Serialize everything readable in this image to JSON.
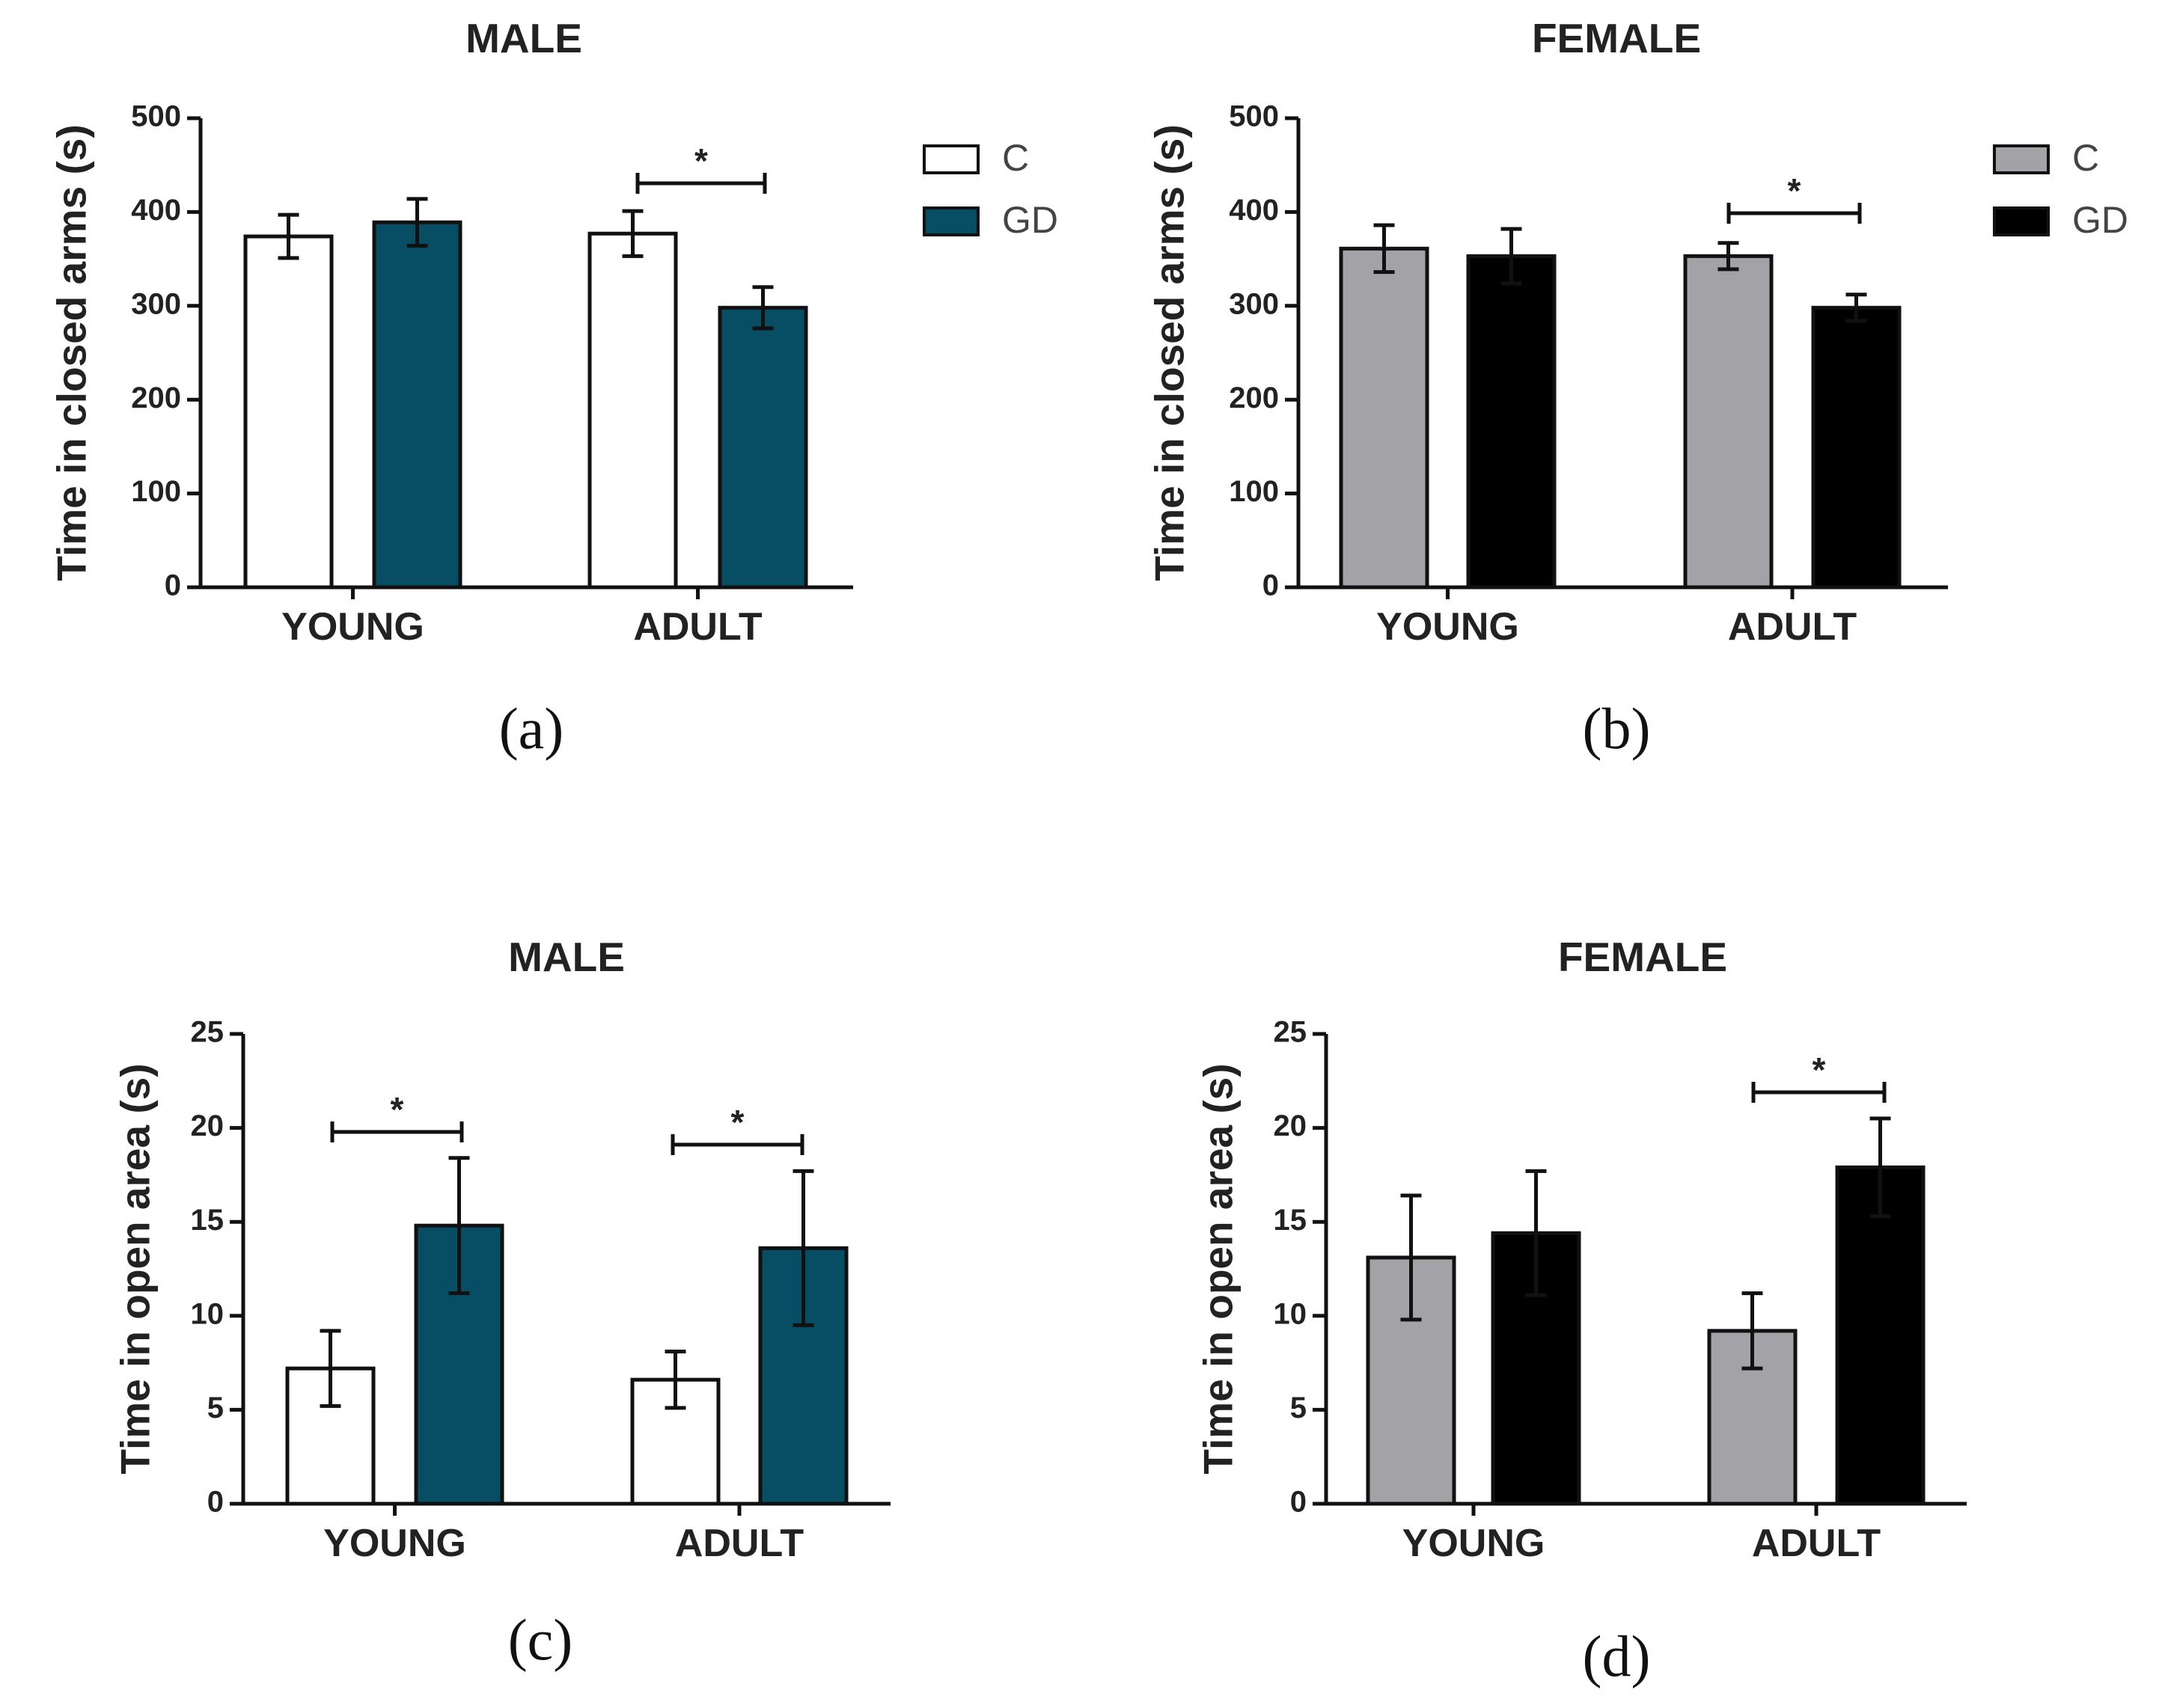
{
  "chart_data": [
    {
      "type": "bar",
      "caption": "(a)",
      "title": "MALE",
      "ylabel": "Time in closed arms (s)",
      "categories": [
        "YOUNG",
        "ADULT"
      ],
      "ylim": [
        0,
        500
      ],
      "yticks": [
        "0",
        "100",
        "200",
        "300",
        "400",
        "500"
      ],
      "series": [
        {
          "name": "C",
          "color": "#ffffff",
          "values": [
            374,
            377
          ],
          "errors": [
            23,
            24
          ]
        },
        {
          "name": "GD",
          "color": "#074d63",
          "values": [
            389,
            298
          ],
          "errors": [
            25,
            22
          ]
        }
      ],
      "significance": [
        {
          "category": "ADULT",
          "label": "*"
        }
      ],
      "legend_position": "right"
    },
    {
      "type": "bar",
      "caption": "(b)",
      "title": "FEMALE",
      "ylabel": "Time in closed arms (s)",
      "categories": [
        "YOUNG",
        "ADULT"
      ],
      "ylim": [
        0,
        500
      ],
      "yticks": [
        "0",
        "100",
        "200",
        "300",
        "400",
        "500"
      ],
      "series": [
        {
          "name": "C",
          "color": "#a3a3a7",
          "values": [
            361,
            353
          ],
          "errors": [
            25,
            14
          ]
        },
        {
          "name": "GD",
          "color": "#000000",
          "values": [
            353,
            298
          ],
          "errors": [
            29,
            14
          ]
        }
      ],
      "significance": [
        {
          "category": "ADULT",
          "label": "*"
        }
      ],
      "legend_position": "right"
    },
    {
      "type": "bar",
      "caption": "(c)",
      "title": "MALE",
      "ylabel": "Time in open area (s)",
      "categories": [
        "YOUNG",
        "ADULT"
      ],
      "ylim": [
        0,
        25
      ],
      "yticks": [
        "0",
        "5",
        "10",
        "15",
        "20",
        "25"
      ],
      "series": [
        {
          "name": "C",
          "color": "#ffffff",
          "values": [
            7.2,
            6.6
          ],
          "errors": [
            2.0,
            1.5
          ]
        },
        {
          "name": "GD",
          "color": "#074d63",
          "values": [
            14.8,
            13.6
          ],
          "errors": [
            3.6,
            4.1
          ]
        }
      ],
      "significance": [
        {
          "category": "YOUNG",
          "label": "*"
        },
        {
          "category": "ADULT",
          "label": "*"
        }
      ]
    },
    {
      "type": "bar",
      "caption": "(d)",
      "title": "FEMALE",
      "ylabel": "Time in open area (s)",
      "categories": [
        "YOUNG",
        "ADULT"
      ],
      "ylim": [
        0,
        25
      ],
      "yticks": [
        "0",
        "5",
        "10",
        "15",
        "20",
        "25"
      ],
      "series": [
        {
          "name": "C",
          "color": "#a3a3a7",
          "values": [
            13.1,
            9.2
          ],
          "errors": [
            3.3,
            2.0
          ]
        },
        {
          "name": "GD",
          "color": "#000000",
          "values": [
            14.4,
            17.9
          ],
          "errors": [
            3.3,
            2.6
          ]
        }
      ],
      "significance": [
        {
          "category": "ADULT",
          "label": "*"
        }
      ]
    }
  ]
}
